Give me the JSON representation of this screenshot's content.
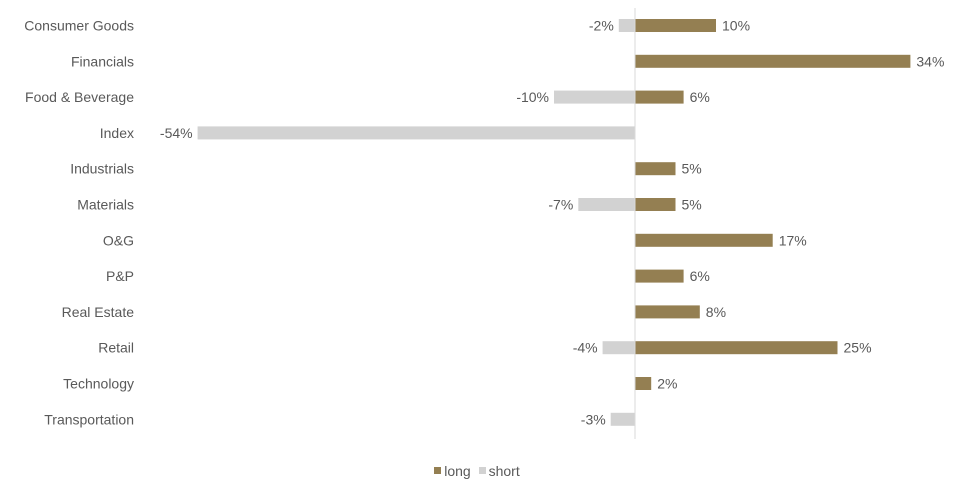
{
  "chart_data": {
    "type": "bar",
    "orientation": "horizontal",
    "categories": [
      "Consumer Goods",
      "Financials",
      "Food & Beverage",
      "Index",
      "Industrials",
      "Materials",
      "O&G",
      "P&P",
      "Real Estate",
      "Retail",
      "Technology",
      "Transportation"
    ],
    "series": [
      {
        "name": "long",
        "color": "#947f52",
        "values": [
          10,
          34,
          6,
          null,
          5,
          5,
          17,
          6,
          8,
          25,
          2,
          null
        ],
        "labels": [
          "10%",
          "34%",
          "6%",
          null,
          "5%",
          "5%",
          "17%",
          "6%",
          "8%",
          "25%",
          "2%",
          null
        ]
      },
      {
        "name": "short",
        "color": "#d2d2d2",
        "values": [
          -2,
          null,
          -10,
          -54,
          null,
          -7,
          null,
          null,
          null,
          -4,
          null,
          -3
        ],
        "labels": [
          "-2%",
          null,
          "-10%",
          "-54%",
          null,
          "-7%",
          null,
          null,
          null,
          "-4%",
          null,
          "-3%"
        ]
      }
    ],
    "xlim": [
      -55,
      39
    ],
    "unit": "%",
    "grid": false,
    "legend_position": "bottom"
  }
}
